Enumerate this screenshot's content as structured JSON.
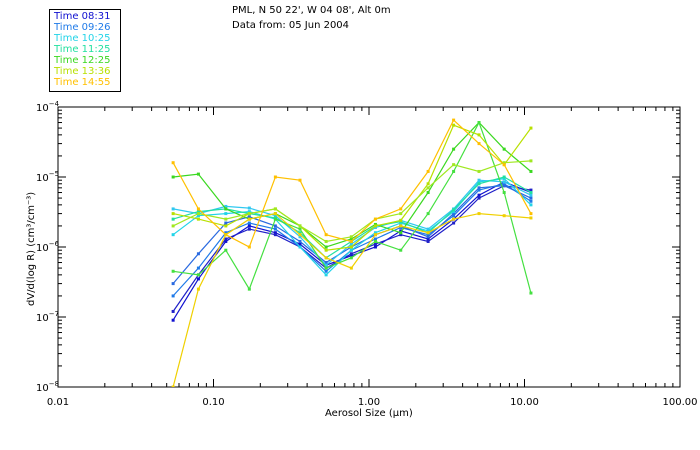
{
  "header": {
    "title_line1": "PML, N 50 22', W 04 08', Alt 0m",
    "title_line2": "Data from: 05 Jun 2004"
  },
  "legend": [
    {
      "label": "Time 08:31",
      "color": "#1010d0"
    },
    {
      "label": "Time 09:26",
      "color": "#1f7ae8"
    },
    {
      "label": "Time 10:25",
      "color": "#22d4e8"
    },
    {
      "label": "Time 11:25",
      "color": "#22e0a0"
    },
    {
      "label": "Time 12:25",
      "color": "#3ad820"
    },
    {
      "label": "Time 13:36",
      "color": "#b8e000"
    },
    {
      "label": "Time 14:55",
      "color": "#ffc000"
    }
  ],
  "chart_data": {
    "type": "line",
    "title": "PML, N 50 22', W 04 08', Alt 0m",
    "subtitle": "Data from: 05 Jun 2004",
    "xlabel": "Aerosol Size (μm)",
    "ylabel": "dV/d(log R) (cm³/cm⁻³)",
    "xscale": "log",
    "yscale": "log",
    "xlim": [
      0.01,
      100
    ],
    "ylim": [
      1e-08,
      0.0001
    ],
    "xticks": [
      {
        "value": 0.01,
        "label": "0.01"
      },
      {
        "value": 0.1,
        "label": "0.10"
      },
      {
        "value": 1,
        "label": "1.00"
      },
      {
        "value": 10,
        "label": "10.00"
      },
      {
        "value": 100,
        "label": "100.00"
      }
    ],
    "yticks": [
      {
        "value": 1e-08,
        "base": "10",
        "exp": "−8"
      },
      {
        "value": 1e-07,
        "base": "10",
        "exp": "−7"
      },
      {
        "value": 1e-06,
        "base": "10",
        "exp": "−6"
      },
      {
        "value": 1e-05,
        "base": "10",
        "exp": "−5"
      },
      {
        "value": 0.0001,
        "base": "10",
        "exp": "−4"
      }
    ],
    "x": [
      0.055,
      0.08,
      0.12,
      0.17,
      0.25,
      0.36,
      0.53,
      0.77,
      1.1,
      1.6,
      2.4,
      3.5,
      5.1,
      7.4,
      11.0
    ],
    "series": [
      {
        "name": "Time 08:31",
        "color": "#1010d0",
        "values": [
          9e-08,
          3.5e-07,
          1.2e-06,
          2e-06,
          1.6e-06,
          1.1e-06,
          5.5e-07,
          7.5e-07,
          1e-06,
          1.7e-06,
          1.3e-06,
          2.5e-06,
          5.5e-06,
          8.5e-06,
          6e-06
        ]
      },
      {
        "name": "Time 08:31",
        "color": "#2020c8",
        "values": [
          1.2e-07,
          4e-07,
          1.3e-06,
          1.8e-06,
          1.5e-06,
          1e-06,
          5e-07,
          8e-07,
          1.1e-06,
          1.5e-06,
          1.2e-06,
          2.2e-06,
          5e-06,
          7.5e-06,
          6.5e-06
        ]
      },
      {
        "name": "Time 09:26",
        "color": "#1f7ae8",
        "values": [
          2e-07,
          5e-07,
          1.6e-06,
          2.2e-06,
          1.8e-06,
          1e-06,
          4.5e-07,
          9e-07,
          1.3e-06,
          1.9e-06,
          1.5e-06,
          2.8e-06,
          6.5e-06,
          8e-06,
          4.5e-06
        ]
      },
      {
        "name": "Time 09:26",
        "color": "#2a6ae0",
        "values": [
          3e-07,
          8e-07,
          2.2e-06,
          2.7e-06,
          2e-06,
          1.2e-06,
          6e-07,
          1e-06,
          1.5e-06,
          2e-06,
          1.4e-06,
          3e-06,
          7e-06,
          7.5e-06,
          5e-06
        ]
      },
      {
        "name": "Time 10:25",
        "color": "#22d4e8",
        "values": [
          1.5e-06,
          2.8e-06,
          3e-06,
          3.2e-06,
          2.5e-06,
          1e-06,
          4e-07,
          9e-07,
          1.6e-06,
          2.2e-06,
          1.7e-06,
          3.2e-06,
          8.5e-06,
          9.5e-06,
          4e-06
        ]
      },
      {
        "name": "Time 10:25",
        "color": "#30c8f0",
        "values": [
          3.5e-06,
          3e-06,
          3.8e-06,
          3.6e-06,
          2.8e-06,
          1.4e-06,
          5.5e-07,
          1.1e-06,
          1.9e-06,
          2.4e-06,
          1.8e-06,
          3.5e-06,
          9e-06,
          8.5e-06,
          5.5e-06
        ]
      },
      {
        "name": "Time 11:25",
        "color": "#22e0a0",
        "values": [
          2.5e-06,
          3.2e-06,
          3.5e-06,
          3e-06,
          2.6e-06,
          1.6e-06,
          7e-07,
          1.2e-06,
          2e-06,
          2.3e-06,
          1.6e-06,
          3.4e-06,
          8e-06,
          1e-05,
          6e-06
        ]
      },
      {
        "name": "Time 12:25",
        "color": "#3ad820",
        "values": [
          1e-05,
          1.1e-05,
          3.5e-06,
          2.5e-06,
          3e-06,
          2e-06,
          1e-06,
          1.3e-06,
          2.1e-06,
          1.6e-06,
          6e-06,
          2.5e-05,
          6e-05,
          2.5e-05,
          1.2e-05
        ]
      },
      {
        "name": "Time 12:25",
        "color": "#44e040",
        "values": [
          4.5e-07,
          4e-07,
          9e-07,
          2.5e-07,
          2.5e-06,
          1.8e-06,
          5e-07,
          7e-07,
          1.2e-06,
          9e-07,
          3e-06,
          1.2e-05,
          6e-05,
          6e-06,
          2.2e-07
        ]
      },
      {
        "name": "Time 13:36",
        "color": "#b8e000",
        "values": [
          3e-06,
          2.5e-06,
          2e-06,
          3e-06,
          3.5e-06,
          2e-06,
          9e-07,
          1e-06,
          2e-06,
          2.4e-06,
          8e-06,
          5.5e-05,
          4e-05,
          1.5e-05,
          5e-05
        ]
      },
      {
        "name": "Time 13:36",
        "color": "#a0e820",
        "values": [
          2e-06,
          3e-06,
          2.5e-06,
          3e-06,
          3.5e-06,
          2e-06,
          1.2e-06,
          1.4e-06,
          2.5e-06,
          3e-06,
          7e-06,
          1.5e-05,
          1.2e-05,
          1.6e-05,
          1.7e-05
        ]
      },
      {
        "name": "Time 14:55",
        "color": "#ffc000",
        "values": [
          1.6e-05,
          3.5e-06,
          1.5e-06,
          1e-06,
          1e-05,
          9e-06,
          1.5e-06,
          1.2e-06,
          2.5e-06,
          3.5e-06,
          1.2e-05,
          6.5e-05,
          3e-05,
          1.5e-05,
          3e-06
        ]
      },
      {
        "name": "Time 14:55",
        "color": "#f0d000",
        "values": [
          1e-08,
          2.5e-07,
          1.5e-06,
          2.5e-06,
          3e-06,
          1.5e-06,
          7e-07,
          5e-07,
          1.5e-06,
          2e-06,
          1.6e-06,
          2.5e-06,
          3e-06,
          2.8e-06,
          2.6e-06
        ]
      }
    ]
  }
}
